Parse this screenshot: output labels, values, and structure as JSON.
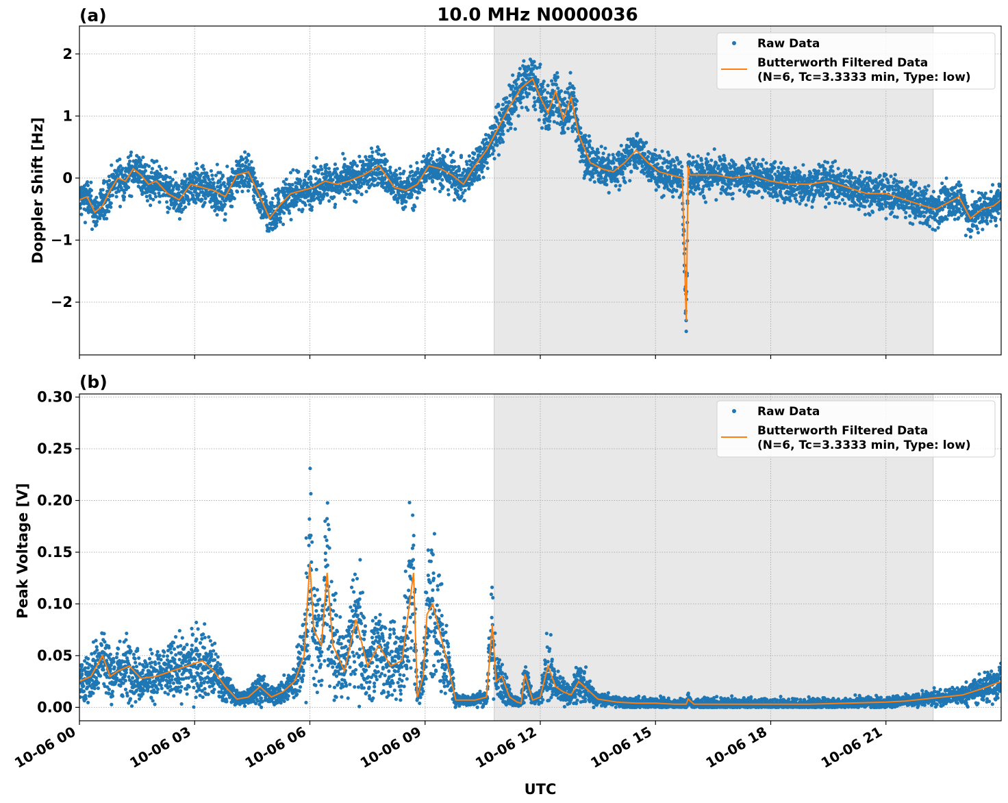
{
  "figure": {
    "title": "10.0 MHz N0000036",
    "xlabel": "UTC",
    "shade_color": "#e8e8e8",
    "raw_color": "#1f77b4",
    "filtered_color": "#ff7f0e",
    "grid": true
  },
  "chart_data": [
    {
      "type": "scatter",
      "panel_label": "(a)",
      "ylabel": "Doppler Shift [Hz]",
      "xlim": [
        0,
        24
      ],
      "ylim": [
        -2.85,
        2.45
      ],
      "yticks": [
        -2,
        -1,
        0,
        1,
        2
      ],
      "ytick_labels": [
        "−2",
        "−1",
        "0",
        "1",
        "2"
      ],
      "xticks": [
        0,
        3,
        6,
        9,
        12,
        15,
        18,
        21
      ],
      "xtick_labels": [],
      "shaded_interval_hours": [
        10.8,
        22.23
      ],
      "legend": {
        "placement": "top-right",
        "entries": [
          "Raw Data",
          "Butterworth Filtered Data",
          "(N=6, Tc=3.3333 min, Type: low)"
        ]
      },
      "series": [
        {
          "name": "Raw Data",
          "kind": "scatter"
        },
        {
          "name": "Butterworth Filtered Data",
          "kind": "line",
          "x": [
            0,
            0.2,
            0.4,
            0.6,
            0.8,
            1.0,
            1.2,
            1.4,
            1.6,
            1.8,
            2.0,
            2.3,
            2.6,
            2.9,
            3.2,
            3.5,
            3.8,
            4.1,
            4.4,
            4.7,
            4.95,
            5.2,
            5.5,
            5.8,
            6.1,
            6.4,
            6.7,
            7.0,
            7.4,
            7.8,
            8.2,
            8.5,
            8.8,
            9.1,
            9.4,
            9.7,
            10.0,
            10.3,
            10.6,
            10.9,
            11.2,
            11.5,
            11.8,
            12.0,
            12.2,
            12.4,
            12.6,
            12.8,
            13.0,
            13.3,
            13.6,
            13.9,
            14.2,
            14.5,
            14.8,
            15.1,
            15.4,
            15.7,
            15.8,
            15.85,
            15.9,
            16.2,
            16.6,
            17.0,
            17.5,
            18.0,
            18.5,
            19.0,
            19.5,
            20.0,
            20.5,
            21.0,
            21.5,
            22.0,
            22.3,
            22.6,
            22.9,
            23.2,
            23.5,
            23.8,
            24.0
          ],
          "y": [
            -0.35,
            -0.3,
            -0.55,
            -0.45,
            -0.2,
            0.0,
            -0.05,
            0.15,
            0.05,
            -0.1,
            -0.05,
            -0.25,
            -0.35,
            -0.1,
            -0.15,
            -0.2,
            -0.3,
            0.05,
            0.1,
            -0.3,
            -0.65,
            -0.45,
            -0.25,
            -0.2,
            -0.15,
            -0.05,
            -0.1,
            -0.05,
            0.05,
            0.2,
            -0.15,
            -0.2,
            -0.1,
            0.2,
            0.15,
            0.05,
            -0.1,
            0.2,
            0.45,
            0.8,
            1.15,
            1.45,
            1.6,
            1.3,
            1.05,
            1.4,
            0.95,
            1.3,
            0.7,
            0.25,
            0.15,
            0.1,
            0.25,
            0.45,
            0.25,
            0.1,
            0.05,
            0.0,
            -2.3,
            0.2,
            0.05,
            0.05,
            0.05,
            0.0,
            0.05,
            -0.05,
            -0.1,
            -0.1,
            -0.05,
            -0.15,
            -0.25,
            -0.25,
            -0.35,
            -0.45,
            -0.5,
            -0.4,
            -0.3,
            -0.65,
            -0.5,
            -0.45,
            -0.35
          ]
        }
      ]
    },
    {
      "type": "scatter",
      "panel_label": "(b)",
      "ylabel": "Peak Voltage [V]",
      "xlim": [
        0,
        24
      ],
      "ylim": [
        -0.013,
        0.303
      ],
      "yticks": [
        0.0,
        0.05,
        0.1,
        0.15,
        0.2,
        0.25,
        0.3
      ],
      "ytick_labels": [
        "0.00",
        "0.05",
        "0.10",
        "0.15",
        "0.20",
        "0.25",
        "0.30"
      ],
      "xticks": [
        0,
        3,
        6,
        9,
        12,
        15,
        18,
        21
      ],
      "xtick_labels": [
        "10-06 00",
        "10-06 03",
        "10-06 06",
        "10-06 09",
        "10-06 12",
        "10-06 15",
        "10-06 18",
        "10-06 21"
      ],
      "shaded_interval_hours": [
        10.8,
        22.23
      ],
      "legend": {
        "placement": "top-right",
        "entries": [
          "Raw Data",
          "Butterworth Filtered Data",
          "(N=6, Tc=3.3333 min, Type: low)"
        ]
      },
      "series": [
        {
          "name": "Raw Data",
          "kind": "scatter"
        },
        {
          "name": "Butterworth Filtered Data",
          "kind": "line",
          "x": [
            0,
            0.3,
            0.6,
            0.8,
            1.0,
            1.3,
            1.6,
            2.0,
            2.4,
            2.8,
            3.2,
            3.5,
            3.8,
            4.1,
            4.4,
            4.7,
            5.0,
            5.3,
            5.6,
            5.85,
            6.0,
            6.1,
            6.3,
            6.45,
            6.6,
            6.9,
            7.2,
            7.5,
            7.8,
            8.1,
            8.4,
            8.7,
            8.8,
            8.95,
            9.05,
            9.2,
            9.4,
            9.6,
            9.8,
            10.0,
            10.3,
            10.6,
            10.75,
            10.85,
            11.0,
            11.2,
            11.4,
            11.5,
            11.6,
            11.8,
            12.0,
            12.2,
            12.4,
            12.6,
            12.8,
            13.0,
            13.5,
            14.0,
            14.5,
            15.0,
            15.5,
            15.8,
            15.85,
            16.0,
            17.0,
            18.0,
            19.0,
            20.0,
            21.0,
            21.5,
            22.0,
            22.5,
            23.0,
            23.5,
            24.0
          ],
          "y": [
            0.025,
            0.03,
            0.05,
            0.03,
            0.035,
            0.04,
            0.028,
            0.03,
            0.035,
            0.04,
            0.045,
            0.035,
            0.02,
            0.008,
            0.01,
            0.02,
            0.01,
            0.015,
            0.025,
            0.05,
            0.14,
            0.075,
            0.06,
            0.13,
            0.06,
            0.035,
            0.085,
            0.04,
            0.06,
            0.04,
            0.045,
            0.13,
            0.01,
            0.03,
            0.09,
            0.1,
            0.07,
            0.04,
            0.007,
            0.007,
            0.007,
            0.01,
            0.08,
            0.025,
            0.03,
            0.01,
            0.005,
            0.004,
            0.032,
            0.007,
            0.01,
            0.04,
            0.02,
            0.015,
            0.012,
            0.025,
            0.008,
            0.005,
            0.004,
            0.004,
            0.003,
            0.003,
            0.008,
            0.003,
            0.003,
            0.003,
            0.003,
            0.004,
            0.005,
            0.006,
            0.008,
            0.01,
            0.012,
            0.018,
            0.025
          ]
        }
      ]
    }
  ]
}
